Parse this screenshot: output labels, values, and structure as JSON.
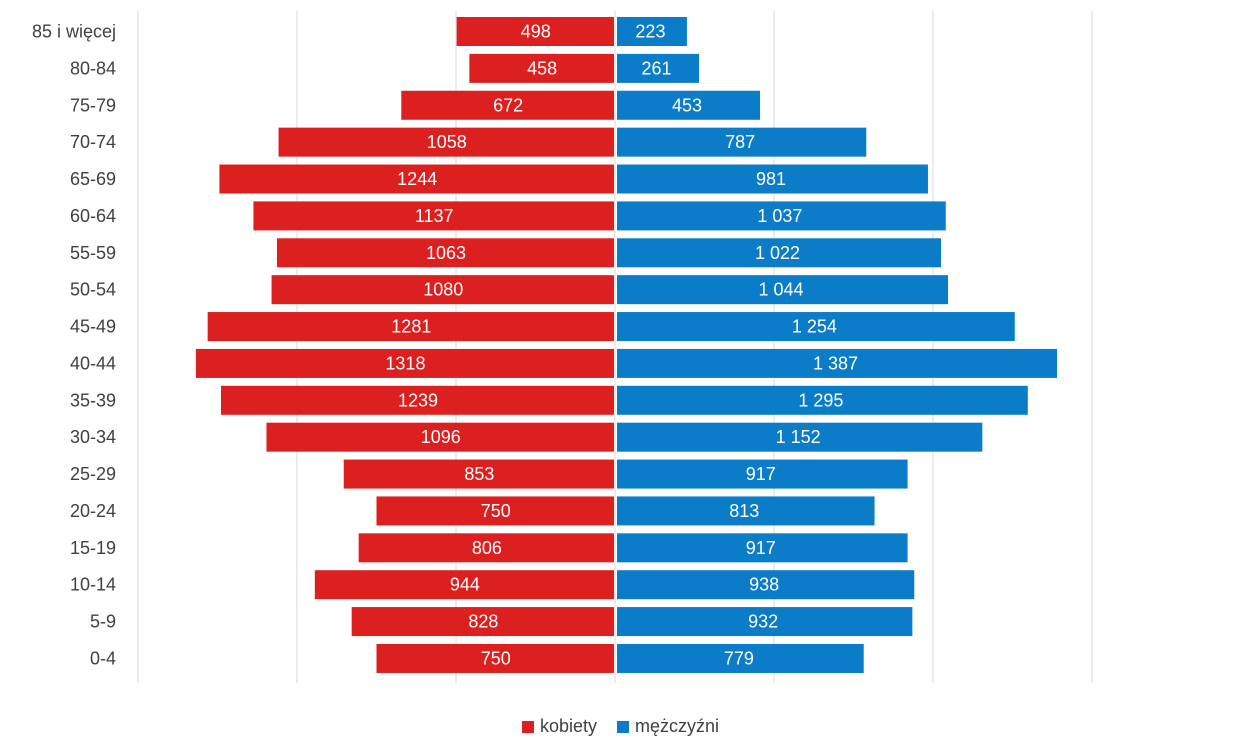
{
  "chart_data": {
    "type": "bar",
    "orientation": "horizontal",
    "layout": "population-pyramid",
    "categories": [
      "0-4",
      "5-9",
      "10-14",
      "15-19",
      "20-24",
      "25-29",
      "30-34",
      "35-39",
      "40-44",
      "45-49",
      "50-54",
      "55-59",
      "60-64",
      "65-69",
      "70-74",
      "75-79",
      "80-84",
      "85 i więcej"
    ],
    "series": [
      {
        "name": "kobiety",
        "color": "#dc1f1f",
        "side": "left",
        "values": [
          750,
          828,
          944,
          806,
          750,
          853,
          1096,
          1239,
          1318,
          1281,
          1080,
          1063,
          1137,
          1244,
          1058,
          672,
          458,
          498
        ],
        "labels": [
          "750",
          "828",
          "944",
          "806",
          "750",
          "853",
          "1096",
          "1239",
          "1318",
          "1281",
          "1080",
          "1063",
          "1137",
          "1244",
          "1058",
          "672",
          "458",
          "498"
        ]
      },
      {
        "name": "mężczyźni",
        "color": "#0b7cc8",
        "side": "right",
        "values": [
          779,
          932,
          938,
          917,
          813,
          917,
          1152,
          1295,
          1387,
          1254,
          1044,
          1022,
          1037,
          981,
          787,
          453,
          261,
          223
        ],
        "labels": [
          "779",
          "932",
          "938",
          "917",
          "813",
          "917",
          "1 152",
          "1 295",
          "1 387",
          "1 254",
          "1 044",
          "1 022",
          "1 037",
          "981",
          "787",
          "453",
          "261",
          "223"
        ]
      }
    ],
    "xlim": [
      -1500,
      1500
    ],
    "grid": true,
    "legend_position": "bottom"
  }
}
